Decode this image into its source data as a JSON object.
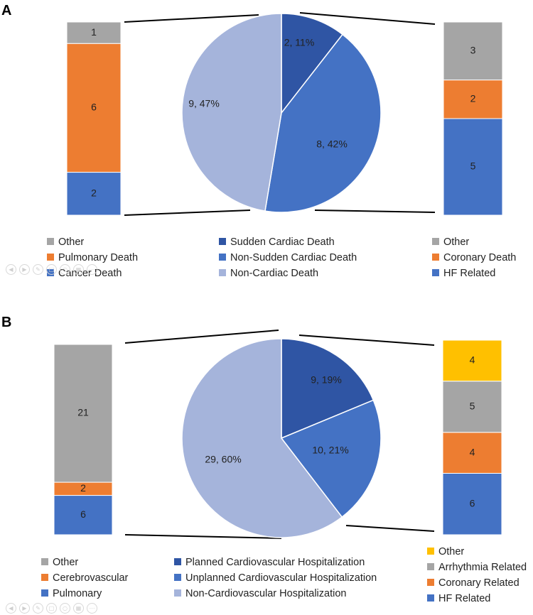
{
  "chart_data": [
    {
      "panel": "A",
      "type": "pie",
      "pie": {
        "categories": [
          "Sudden Cardiac Death",
          "Non-Sudden Cardiac Death",
          "Non-Cardiac Death"
        ],
        "values": [
          2,
          8,
          9
        ],
        "labels": [
          "2, 11%",
          "8, 42%",
          "9, 47%"
        ],
        "colors": [
          "#2F55A4",
          "#4472C4",
          "#A5B4DB"
        ]
      },
      "left_bar": {
        "categories": [
          "Cancer Death",
          "Pulmonary Death",
          "Other"
        ],
        "values": [
          2,
          6,
          1
        ],
        "labels": [
          "2",
          "6",
          "1"
        ],
        "colors": [
          "#4472C4",
          "#ED7D31",
          "#A5A5A5"
        ]
      },
      "right_bar": {
        "categories": [
          "HF Related",
          "Coronary Death",
          "Other"
        ],
        "values": [
          5,
          2,
          3
        ],
        "labels": [
          "5",
          "2",
          "3"
        ],
        "colors": [
          "#4472C4",
          "#ED7D31",
          "#A5A5A5"
        ]
      },
      "legend": {
        "left": [
          {
            "label": "Other",
            "color": "#A5A5A5"
          },
          {
            "label": "Pulmonary Death",
            "color": "#ED7D31"
          },
          {
            "label": "Cancer Death",
            "color": "#4472C4"
          }
        ],
        "center": [
          {
            "label": "Sudden Cardiac Death",
            "color": "#2F55A4"
          },
          {
            "label": "Non-Sudden Cardiac Death",
            "color": "#4472C4"
          },
          {
            "label": "Non-Cardiac Death",
            "color": "#A5B4DB"
          }
        ],
        "right": [
          {
            "label": "Other",
            "color": "#A5A5A5"
          },
          {
            "label": "Coronary Death",
            "color": "#ED7D31"
          },
          {
            "label": "HF Related",
            "color": "#4472C4"
          }
        ]
      }
    },
    {
      "panel": "B",
      "type": "pie",
      "pie": {
        "categories": [
          "Planned Cardiovascular Hospitalization",
          "Unplanned Cardiovascular Hospitalization",
          "Non-Cardiovascular Hospitalization"
        ],
        "values": [
          9,
          10,
          29
        ],
        "labels": [
          "9, 19%",
          "10, 21%",
          "29, 60%"
        ],
        "colors": [
          "#2F55A4",
          "#4472C4",
          "#A5B4DB"
        ]
      },
      "left_bar": {
        "categories": [
          "Pulmonary",
          "Cerebrovascular",
          "Other"
        ],
        "values": [
          6,
          2,
          21
        ],
        "labels": [
          "6",
          "2",
          "21"
        ],
        "colors": [
          "#4472C4",
          "#ED7D31",
          "#A5A5A5"
        ]
      },
      "right_bar": {
        "categories": [
          "HF Related",
          "Coronary Related",
          "Arrhythmia Related",
          "Other"
        ],
        "values": [
          6,
          4,
          5,
          4
        ],
        "labels": [
          "6",
          "4",
          "5",
          "4"
        ],
        "colors": [
          "#4472C4",
          "#ED7D31",
          "#A5A5A5",
          "#FFC000"
        ]
      },
      "legend": {
        "left": [
          {
            "label": "Other",
            "color": "#A5A5A5"
          },
          {
            "label": "Cerebrovascular",
            "color": "#ED7D31"
          },
          {
            "label": "Pulmonary",
            "color": "#4472C4"
          }
        ],
        "center": [
          {
            "label": "Planned Cardiovascular Hospitalization",
            "color": "#2F55A4"
          },
          {
            "label": "Unplanned Cardiovascular Hospitalization",
            "color": "#4472C4"
          },
          {
            "label": "Non-Cardiovascular Hospitalization",
            "color": "#A5B4DB"
          }
        ],
        "right": [
          {
            "label": "Other",
            "color": "#FFC000"
          },
          {
            "label": "Arrhythmia Related",
            "color": "#A5A5A5"
          },
          {
            "label": "Coronary Related",
            "color": "#ED7D31"
          },
          {
            "label": "HF Related",
            "color": "#4472C4"
          }
        ]
      }
    }
  ]
}
